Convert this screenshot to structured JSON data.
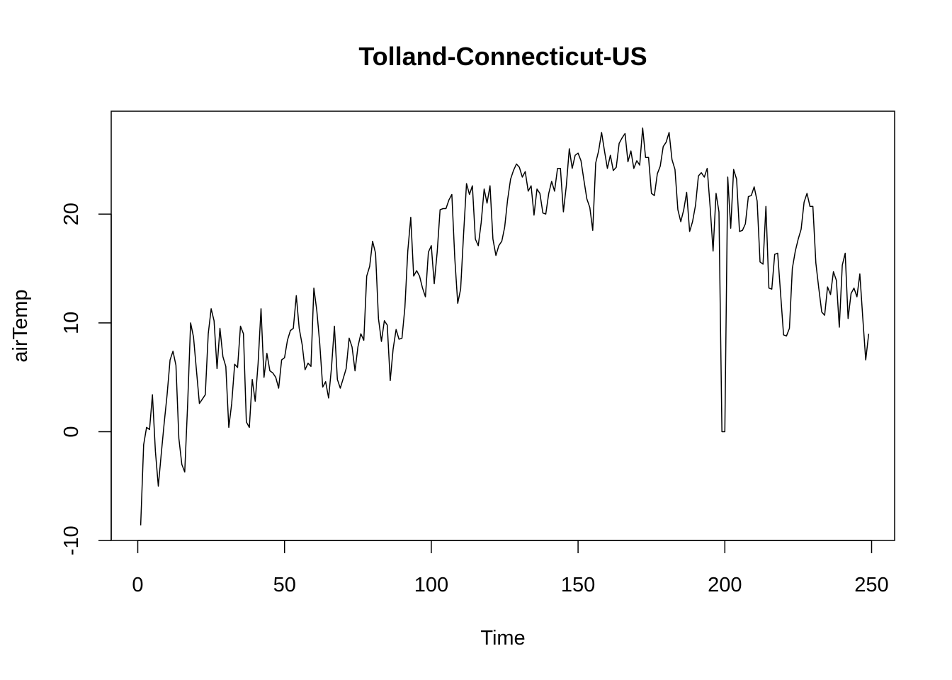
{
  "chart_data": {
    "type": "line",
    "title": "Tolland-Connecticut-US",
    "xlabel": "Time",
    "ylabel": "airTemp",
    "xlim": [
      1,
      248
    ],
    "ylim": [
      -8.6,
      27.9
    ],
    "x_ticks": [
      0,
      50,
      100,
      150,
      200,
      250
    ],
    "y_ticks": [
      -10,
      0,
      10,
      20
    ],
    "x_tick_labels": [
      "0",
      "50",
      "100",
      "150",
      "200",
      "250"
    ],
    "y_tick_labels": [
      "-10",
      "0",
      "10",
      "20"
    ],
    "grid": false,
    "legend": "none",
    "line_color": "#000000",
    "series": [
      {
        "x_start": 1,
        "x_step": 1,
        "values": [
          -8.6,
          -1.2,
          0.4,
          0.2,
          3.4,
          -1.8,
          -5.0,
          -2.0,
          0.8,
          3.4,
          6.6,
          7.4,
          6.1,
          -0.6,
          -3.0,
          -3.7,
          2.5,
          10.0,
          8.7,
          5.6,
          2.6,
          3.0,
          3.4,
          9.0,
          11.3,
          10.2,
          5.8,
          9.5,
          6.9,
          6.0,
          0.4,
          2.6,
          6.2,
          5.9,
          9.7,
          9.0,
          0.9,
          0.4,
          4.8,
          2.8,
          6.3,
          11.3,
          5.0,
          7.2,
          5.6,
          5.4,
          5.0,
          4.0,
          6.6,
          6.8,
          8.4,
          9.3,
          9.5,
          12.5,
          9.5,
          8.0,
          5.7,
          6.3,
          6.0,
          13.2,
          11.1,
          8.1,
          4.1,
          4.6,
          3.1,
          5.9,
          9.7,
          4.8,
          4.0,
          4.9,
          5.8,
          8.6,
          7.8,
          5.6,
          7.8,
          9.0,
          8.4,
          14.3,
          15.2,
          17.5,
          16.4,
          10.4,
          8.3,
          10.2,
          9.8,
          4.7,
          7.6,
          9.4,
          8.5,
          8.6,
          11.4,
          16.6,
          19.7,
          14.3,
          14.8,
          14.3,
          13.2,
          12.4,
          16.5,
          17.1,
          13.6,
          16.5,
          20.4,
          20.5,
          20.5,
          21.3,
          21.8,
          15.9,
          11.8,
          13.1,
          18.2,
          22.8,
          21.8,
          22.6,
          17.7,
          17.1,
          19.2,
          22.3,
          21.0,
          22.6,
          17.7,
          16.2,
          17.1,
          17.5,
          18.8,
          21.3,
          23.2,
          24.0,
          24.6,
          24.3,
          23.4,
          23.9,
          22.1,
          22.6,
          19.9,
          22.3,
          21.9,
          20.1,
          20.0,
          21.9,
          23.0,
          22.1,
          24.2,
          24.2,
          20.2,
          22.6,
          26.0,
          24.2,
          25.4,
          25.6,
          24.9,
          23.1,
          21.4,
          20.6,
          18.5,
          24.7,
          25.8,
          27.5,
          25.8,
          24.2,
          25.4,
          24.0,
          24.3,
          26.5,
          27.0,
          27.4,
          24.8,
          25.8,
          24.2,
          24.9,
          24.5,
          27.9,
          25.2,
          25.2,
          21.9,
          21.7,
          23.7,
          24.4,
          26.2,
          26.6,
          27.5,
          25.0,
          24.1,
          20.4,
          19.3,
          20.4,
          22.0,
          18.4,
          19.3,
          20.8,
          23.5,
          23.8,
          23.4,
          24.2,
          20.6,
          16.6,
          21.9,
          20.2,
          0.0,
          0.0,
          23.4,
          18.7,
          24.1,
          23.2,
          18.4,
          18.5,
          19.1,
          21.6,
          21.7,
          22.5,
          21.2,
          15.6,
          15.4,
          20.7,
          13.2,
          13.1,
          16.3,
          16.4,
          12.7,
          8.9,
          8.8,
          9.5,
          15.0,
          16.6,
          17.7,
          18.6,
          21.1,
          21.9,
          20.7,
          20.7,
          15.5,
          13.2,
          11.0,
          10.7,
          13.3,
          12.6,
          14.7,
          13.9,
          9.6,
          15.3,
          16.4,
          10.4,
          12.7,
          13.2,
          12.4,
          14.5,
          10.4,
          6.6,
          9.0
        ]
      }
    ]
  }
}
